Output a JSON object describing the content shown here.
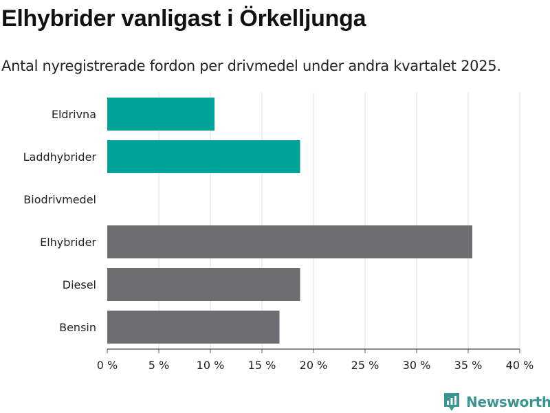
{
  "header": {
    "title": "Elhybrider vanligast i Örkelljunga",
    "subtitle": "Antal nyregistrerade fordon per drivmedel under andra kvartalet 2025."
  },
  "brand": {
    "name": "Newsworthy",
    "icon": "newsworthy-logo-icon",
    "color": "#3a9590"
  },
  "chart_data": {
    "type": "bar",
    "orientation": "horizontal",
    "categories": [
      "Eldrivna",
      "Laddhybrider",
      "Biodrivmedel",
      "Elhybrider",
      "Diesel",
      "Bensin"
    ],
    "values": [
      10.4,
      18.7,
      0,
      35.4,
      18.7,
      16.7
    ],
    "colors": [
      "#00a398",
      "#00a398",
      "#00a398",
      "#6e6d72",
      "#6e6d72",
      "#6e6d72"
    ],
    "xlim": [
      0,
      40
    ],
    "xticks": [
      0,
      5,
      10,
      15,
      20,
      25,
      30,
      35,
      40
    ],
    "xtick_labels": [
      "0 %",
      "5 %",
      "10 %",
      "15 %",
      "20 %",
      "25 %",
      "30 %",
      "35 %",
      "40 %"
    ],
    "grid": true,
    "legend": "none"
  }
}
